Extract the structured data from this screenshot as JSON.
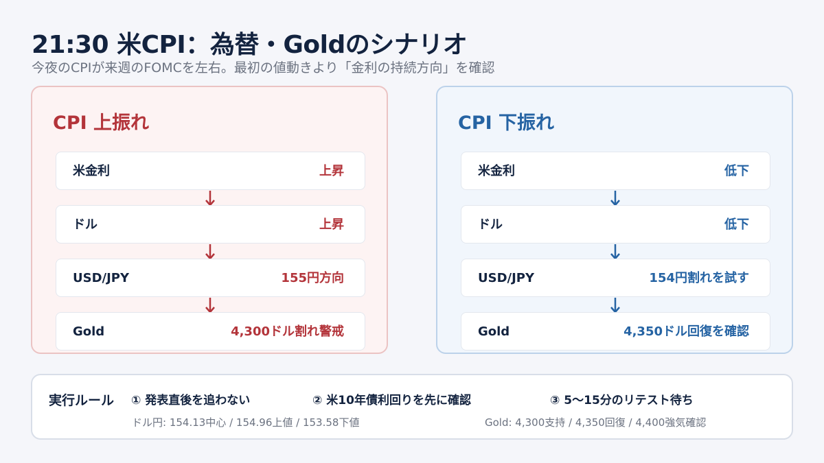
{
  "header": {
    "title": "21:30 米CPI：為替・Goldのシナリオ",
    "subtitle": "今夜のCPIが来週のFOMCを左右。最初の値動きより「金利の持続方向」を確認"
  },
  "colors": {
    "up_accent": "#b3343a",
    "down_accent": "#2563a3",
    "text_dark": "#13233f",
    "text_muted": "#6b7280"
  },
  "scenario_up": {
    "title": "CPI 上振れ",
    "rows": [
      {
        "label": "米金利",
        "value": "上昇"
      },
      {
        "label": "ドル",
        "value": "上昇"
      },
      {
        "label": "USD/JPY",
        "value": "155円方向"
      },
      {
        "label": "Gold",
        "value": "4,300ドル割れ警戒"
      }
    ]
  },
  "scenario_down": {
    "title": "CPI 下振れ",
    "rows": [
      {
        "label": "米金利",
        "value": "低下"
      },
      {
        "label": "ドル",
        "value": "低下"
      },
      {
        "label": "USD/JPY",
        "value": "154円割れを試す"
      },
      {
        "label": "Gold",
        "value": "4,350ドル回復を確認"
      }
    ]
  },
  "rules": {
    "title": "実行ルール",
    "items": [
      "① 発表直後を追わない",
      "② 米10年債利回りを先に確認",
      "③ 5〜15分のリテスト待ち"
    ],
    "notes": [
      "ドル円: 154.13中心 / 154.96上値 / 153.58下値",
      "Gold: 4,300支持 / 4,350回復 / 4,400強気確認"
    ]
  }
}
